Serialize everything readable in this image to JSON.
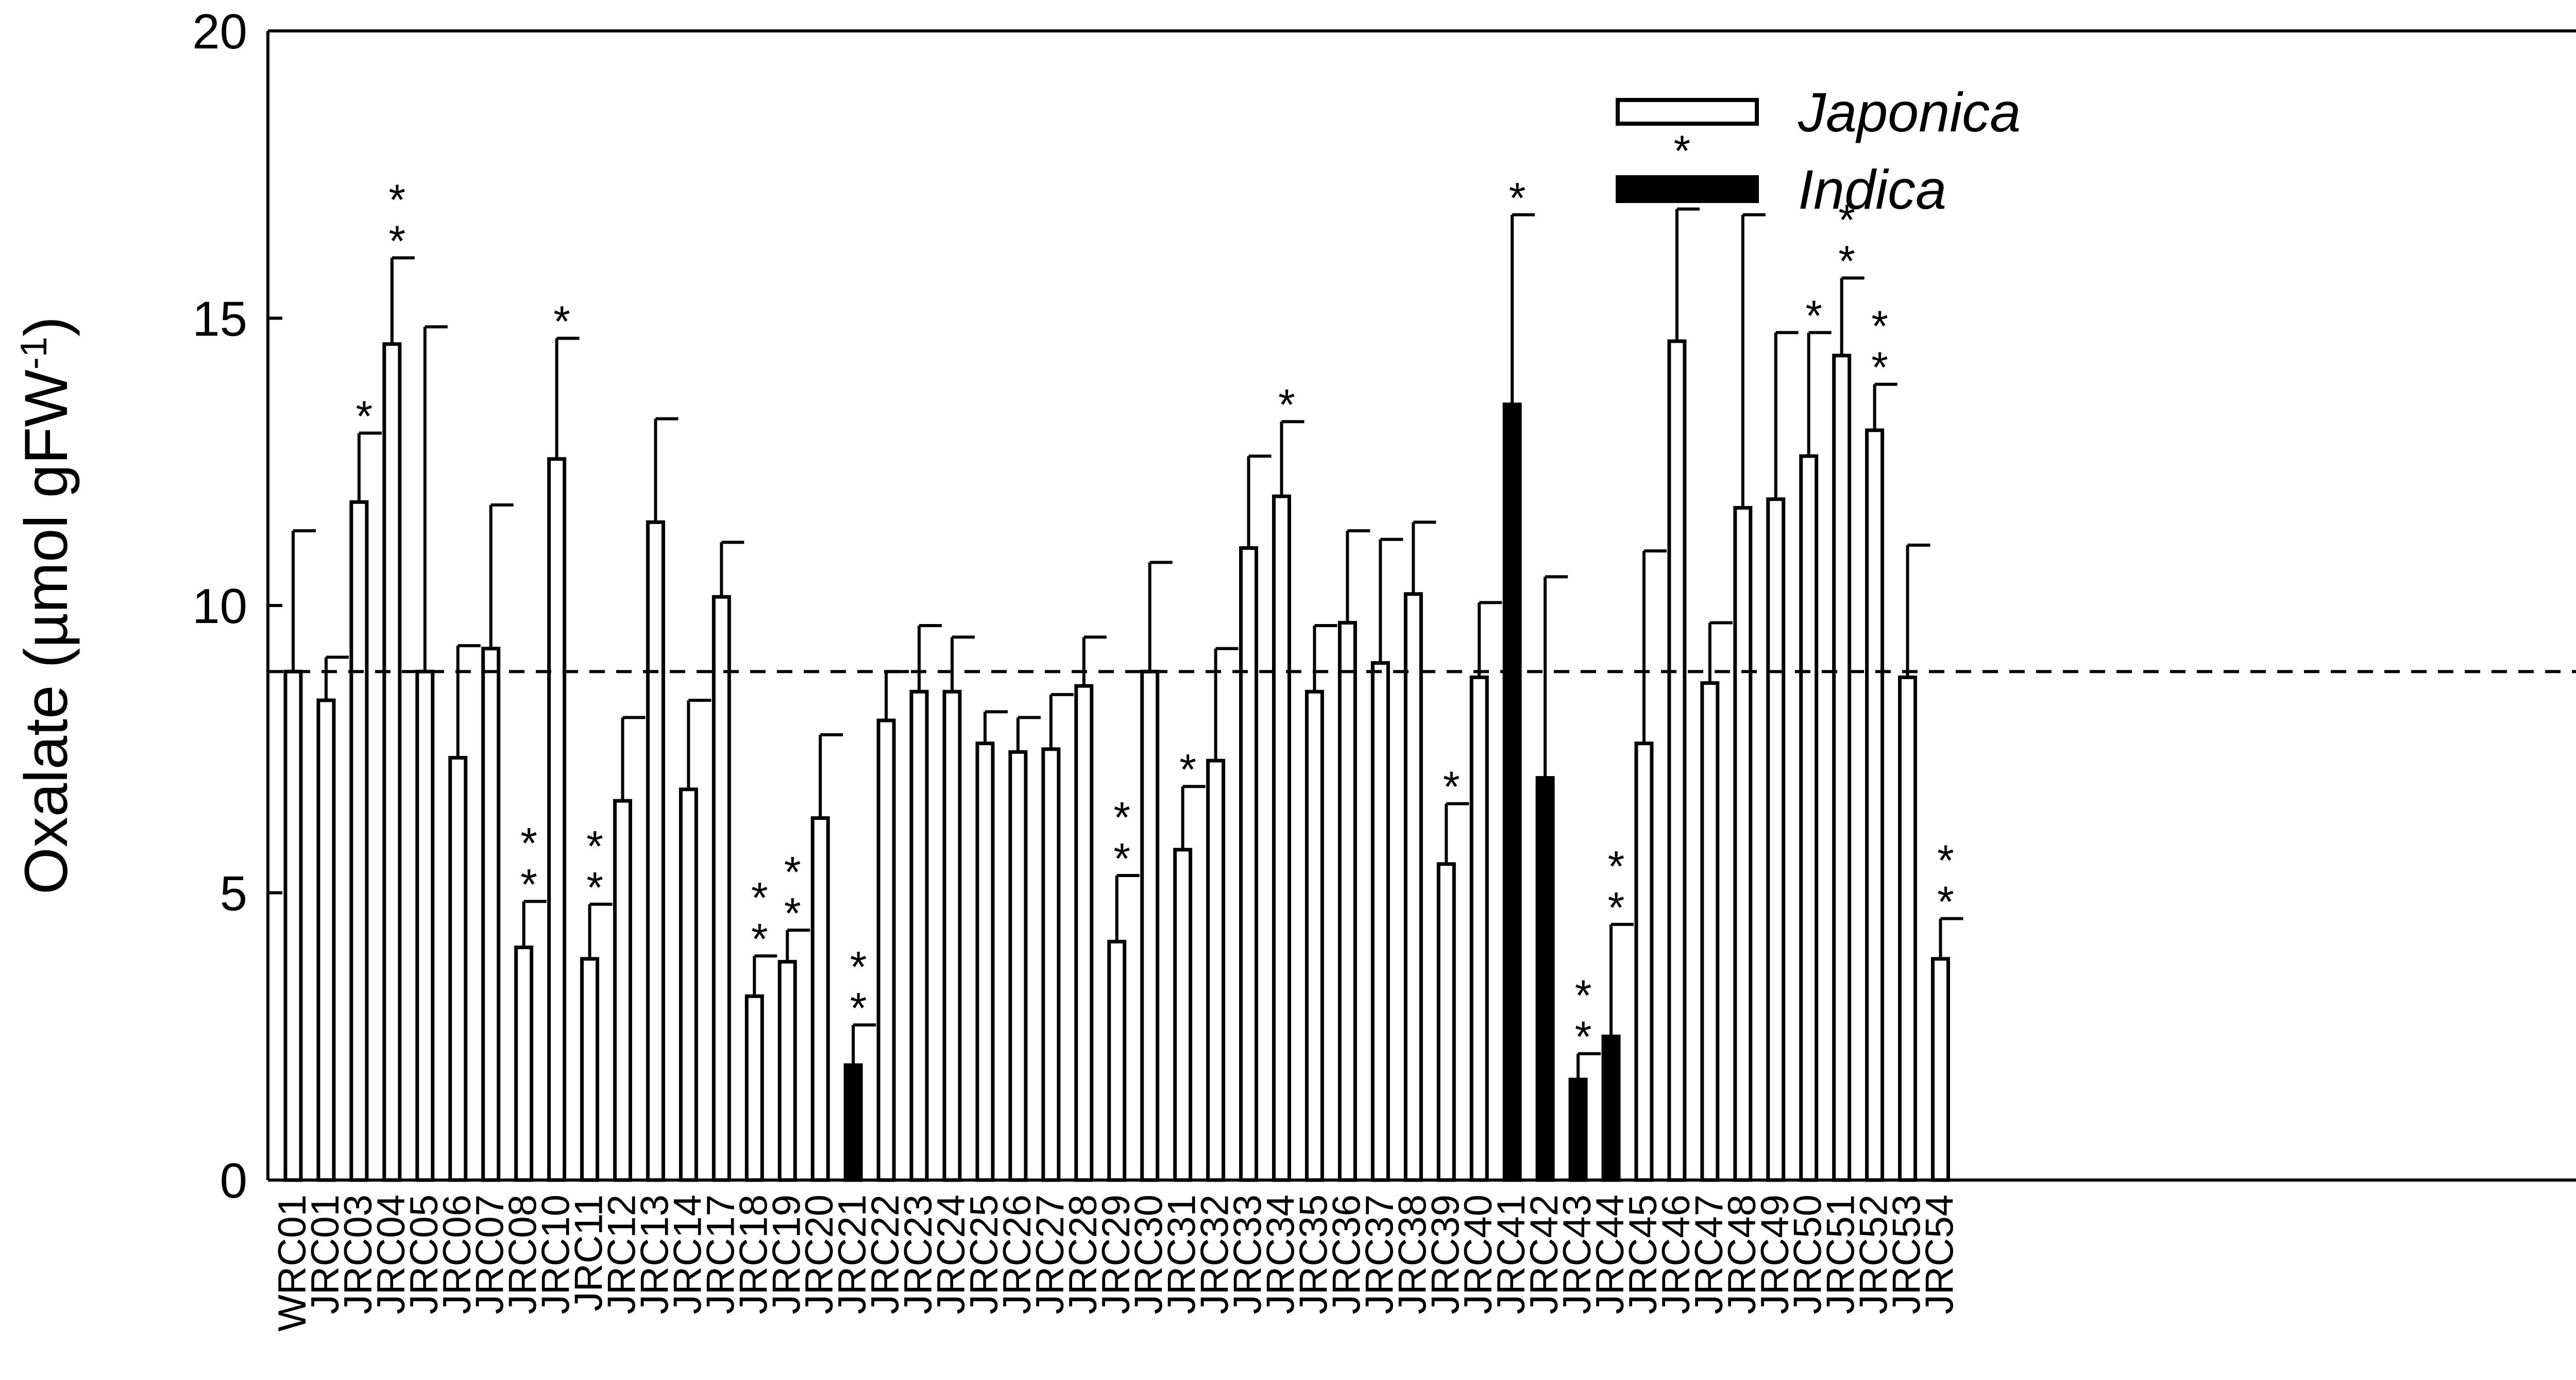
{
  "chart_data": {
    "type": "bar",
    "ylabel": "Oxalate (µmol gFW",
    "ylabel_superscript": "-1",
    "ylabel_close": ")",
    "ylim": [
      0,
      20
    ],
    "yticks": [
      0,
      5,
      10,
      15,
      20
    ],
    "grid": false,
    "reference_line": {
      "value": 8.85,
      "style": "dashed"
    },
    "legend": {
      "placement": "top-right",
      "entries": [
        {
          "name": "Japonica",
          "fill": "#ffffff"
        },
        {
          "name": "Indica",
          "fill": "#000000"
        }
      ]
    },
    "categories": [
      "WRC01",
      "JRC01",
      "JRC03",
      "JRC04",
      "JRC05",
      "JRC06",
      "JRC07",
      "JRC08",
      "JRC10",
      "JRC11",
      "JRC12",
      "JRC13",
      "JRC14",
      "JRC17",
      "JRC18",
      "JRC19",
      "JRC20",
      "JRC21",
      "JRC22",
      "JRC23",
      "JRC24",
      "JRC25",
      "JRC26",
      "JRC27",
      "JRC28",
      "JRC29",
      "JRC30",
      "JRC31",
      "JRC32",
      "JRC33",
      "JRC34",
      "JRC35",
      "JRC36",
      "JRC37",
      "JRC38",
      "JRC39",
      "JRC40",
      "JRC41",
      "JRC42",
      "JRC43",
      "JRC44",
      "JRC45",
      "JRC46",
      "JRC47",
      "JRC48",
      "JRC49",
      "JRC50",
      "JRC51",
      "JRC52",
      "JRC53",
      "JRC54"
    ],
    "values": [
      8.85,
      8.35,
      11.8,
      14.55,
      8.85,
      7.35,
      9.25,
      4.05,
      12.55,
      3.85,
      6.6,
      11.45,
      6.8,
      10.15,
      3.2,
      3.8,
      6.3,
      2.0,
      8.0,
      8.5,
      8.5,
      7.6,
      7.45,
      7.5,
      8.6,
      4.15,
      8.85,
      5.75,
      7.3,
      11.0,
      11.9,
      8.5,
      9.7,
      9.0,
      10.2,
      5.5,
      8.75,
      13.5,
      7.0,
      1.75,
      2.5,
      7.6,
      14.6,
      8.65,
      11.7,
      11.85,
      12.6,
      14.35,
      13.05,
      8.75,
      3.85
    ],
    "errors": [
      2.45,
      0.75,
      1.2,
      1.5,
      6.0,
      1.95,
      2.5,
      0.8,
      2.1,
      0.95,
      1.45,
      1.8,
      1.55,
      0.95,
      0.7,
      0.55,
      1.45,
      0.7,
      0.85,
      1.15,
      0.95,
      0.55,
      0.6,
      0.95,
      0.85,
      1.15,
      1.9,
      1.1,
      1.95,
      1.6,
      1.3,
      1.15,
      1.6,
      2.15,
      1.25,
      1.05,
      1.3,
      3.3,
      3.5,
      0.45,
      1.95,
      3.35,
      2.3,
      1.05,
      5.1,
      2.9,
      2.15,
      1.35,
      0.8,
      2.3,
      0.7
    ],
    "group": [
      "Japonica",
      "Japonica",
      "Japonica",
      "Japonica",
      "Japonica",
      "Japonica",
      "Japonica",
      "Japonica",
      "Japonica",
      "Japonica",
      "Japonica",
      "Japonica",
      "Japonica",
      "Japonica",
      "Japonica",
      "Japonica",
      "Japonica",
      "Indica",
      "Japonica",
      "Japonica",
      "Japonica",
      "Japonica",
      "Japonica",
      "Japonica",
      "Japonica",
      "Japonica",
      "Japonica",
      "Japonica",
      "Japonica",
      "Japonica",
      "Japonica",
      "Japonica",
      "Japonica",
      "Japonica",
      "Japonica",
      "Japonica",
      "Japonica",
      "Indica",
      "Indica",
      "Indica",
      "Indica",
      "Japonica",
      "Japonica",
      "Japonica",
      "Japonica",
      "Japonica",
      "Japonica",
      "Japonica",
      "Japonica",
      "Japonica",
      "Japonica"
    ],
    "significance": [
      "",
      "",
      "*",
      "**",
      "",
      "",
      "",
      "**",
      "*",
      "**",
      "",
      "",
      "",
      "",
      "**",
      "**",
      "",
      "**",
      "",
      "",
      "",
      "",
      "",
      "",
      "",
      "**",
      "",
      "*",
      "",
      "",
      "*",
      "",
      "",
      "",
      "",
      "*",
      "",
      "*",
      "",
      "**",
      "**",
      "",
      "**",
      "",
      "",
      "",
      "*",
      "**",
      "**",
      "",
      "**"
    ]
  }
}
